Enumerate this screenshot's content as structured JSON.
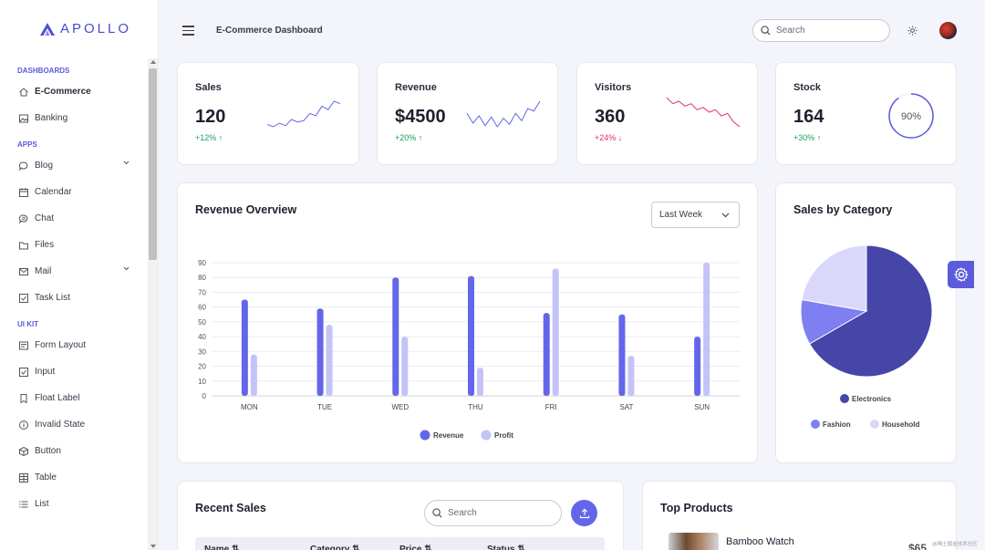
{
  "brand": {
    "name": "APOLLO"
  },
  "sidebar": {
    "sections": [
      {
        "title": "DASHBOARDS",
        "items": [
          {
            "label": "E-Commerce",
            "icon": "home-icon",
            "active": true
          },
          {
            "label": "Banking",
            "icon": "image-icon"
          }
        ]
      },
      {
        "title": "APPS",
        "items": [
          {
            "label": "Blog",
            "icon": "chat-bubble-icon",
            "expandable": true
          },
          {
            "label": "Calendar",
            "icon": "calendar-icon"
          },
          {
            "label": "Chat",
            "icon": "chat-search-icon"
          },
          {
            "label": "Files",
            "icon": "folder-icon"
          },
          {
            "label": "Mail",
            "icon": "mail-icon",
            "expandable": true
          },
          {
            "label": "Task List",
            "icon": "checkbox-icon"
          }
        ]
      },
      {
        "title": "UI KIT",
        "items": [
          {
            "label": "Form Layout",
            "icon": "form-icon"
          },
          {
            "label": "Input",
            "icon": "checkbox-icon"
          },
          {
            "label": "Float Label",
            "icon": "bookmark-icon"
          },
          {
            "label": "Invalid State",
            "icon": "info-circle-icon"
          },
          {
            "label": "Button",
            "icon": "box-icon"
          },
          {
            "label": "Table",
            "icon": "table-icon"
          },
          {
            "label": "List",
            "icon": "list-icon"
          }
        ]
      }
    ]
  },
  "header": {
    "title": "E-Commerce Dashboard",
    "search_placeholder": "Search"
  },
  "stats": [
    {
      "label": "Sales",
      "value": "120",
      "change": "+12%",
      "direction": "up",
      "spark": [
        5,
        3,
        6,
        4,
        9,
        7,
        8,
        14,
        12,
        20,
        17,
        24,
        22
      ]
    },
    {
      "label": "Revenue",
      "value": "$4500",
      "change": "+20%",
      "direction": "up",
      "spark": [
        14,
        6,
        12,
        4,
        11,
        3,
        10,
        5,
        14,
        8,
        18,
        16,
        24
      ]
    },
    {
      "label": "Visitors",
      "value": "360",
      "change": "+24%",
      "direction": "down",
      "spark": [
        24,
        19,
        21,
        17,
        19,
        14,
        16,
        12,
        14,
        9,
        11,
        4,
        0
      ]
    },
    {
      "label": "Stock",
      "value": "164",
      "change": "+30%",
      "direction": "up",
      "gauge": "90%",
      "gauge_fraction": 0.9
    }
  ],
  "revenue_overview": {
    "title": "Revenue Overview",
    "range_selected": "Last Week"
  },
  "sales_by_category": {
    "title": "Sales by Category"
  },
  "recent_sales": {
    "title": "Recent Sales",
    "search_placeholder": "Search",
    "columns": [
      "Name ⇅",
      "Category ⇅",
      "Price ⇅",
      "Status ⇅"
    ]
  },
  "top_products": {
    "title": "Top Products",
    "items": [
      {
        "name": "Bamboo Watch",
        "price": "$65"
      }
    ]
  },
  "watermark": "@稀土掘金技术社区",
  "colors": {
    "accent": "#5b5bdc",
    "revenue": "#6466e9",
    "profit": "#c4c3f7",
    "up": "#19a35d",
    "down": "#e0306b"
  },
  "chart_data": [
    {
      "type": "bar",
      "title": "Revenue Overview",
      "categories": [
        "MON",
        "TUE",
        "WED",
        "THU",
        "FRI",
        "SAT",
        "SUN"
      ],
      "series": [
        {
          "name": "Revenue",
          "values": [
            65,
            59,
            80,
            81,
            56,
            55,
            40
          ]
        },
        {
          "name": "Profit",
          "values": [
            28,
            48,
            40,
            19,
            86,
            27,
            90
          ]
        }
      ],
      "yticks": [
        0,
        10,
        20,
        30,
        40,
        50,
        60,
        70,
        80,
        90
      ],
      "ylim": [
        0,
        90
      ],
      "grid": true,
      "legend": "bottom"
    },
    {
      "type": "pie",
      "title": "Sales by Category",
      "labels": [
        "Electronics",
        "Fashion",
        "Household"
      ],
      "values": [
        300,
        50,
        100
      ],
      "colors": [
        "#4546a8",
        "#7e7ff0",
        "#d9d8fb"
      ],
      "legend": "bottom"
    }
  ]
}
